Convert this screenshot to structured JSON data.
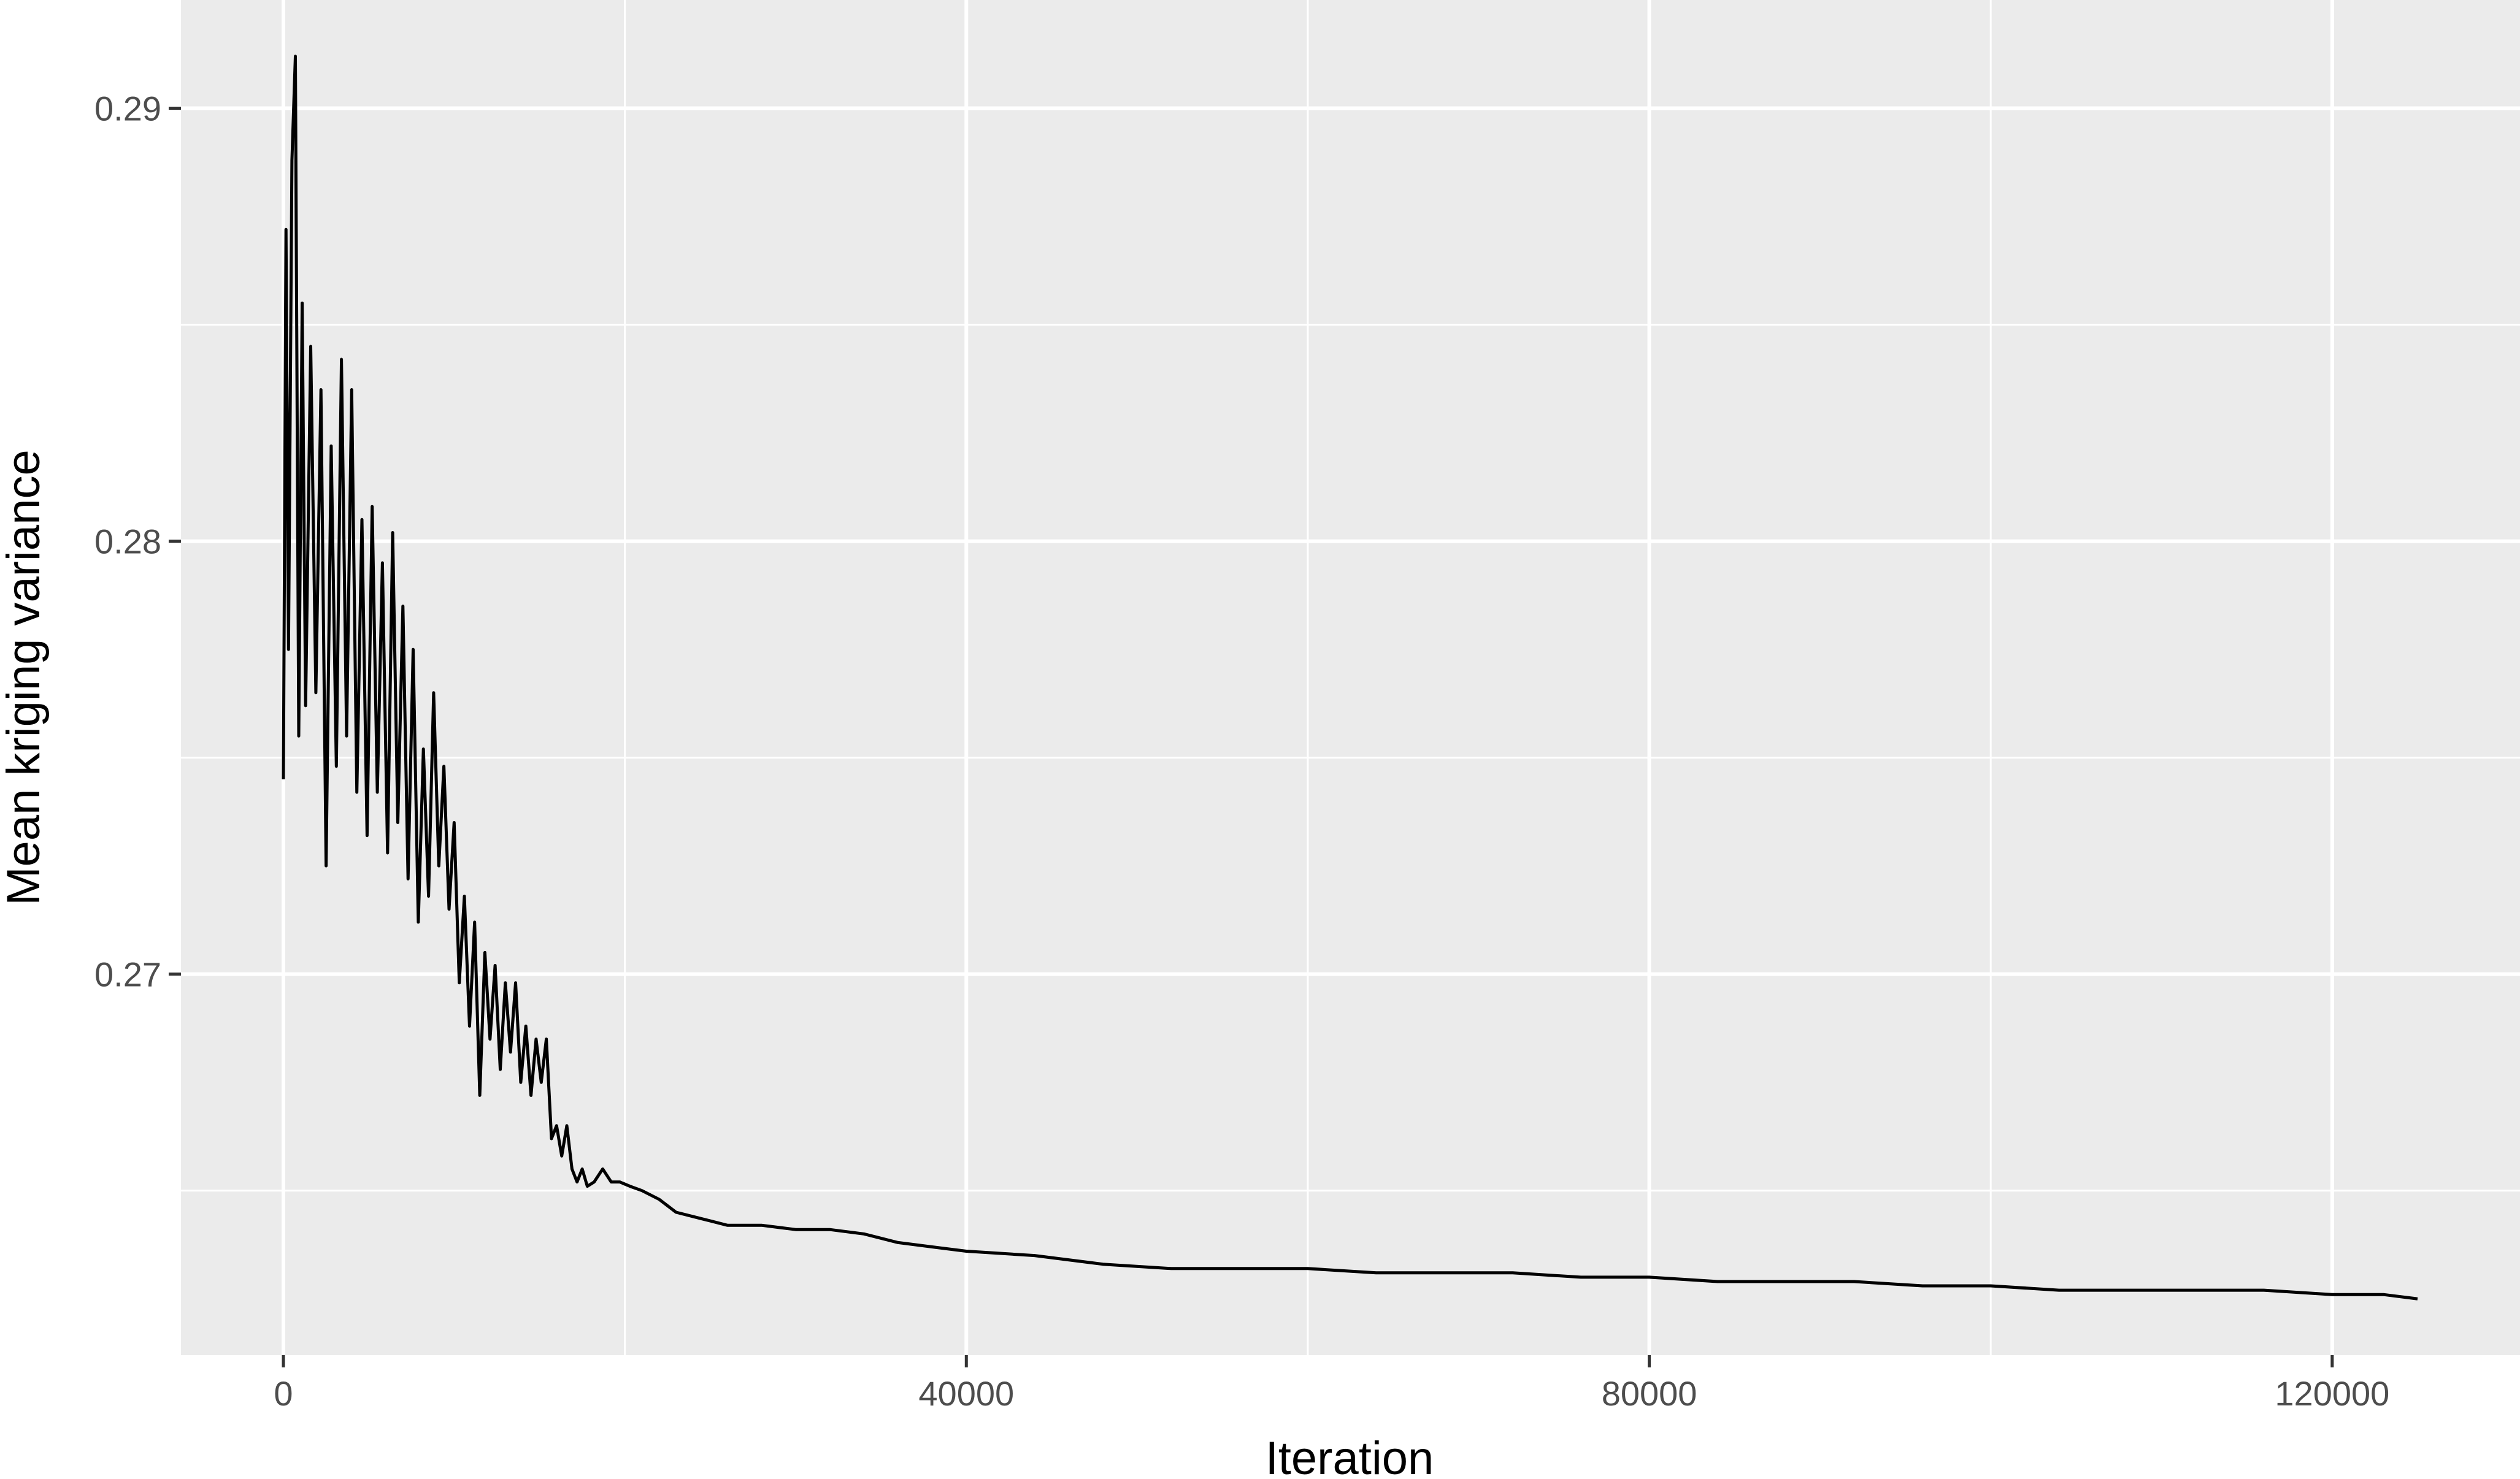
{
  "chart_data": {
    "type": "line",
    "title": "",
    "xlabel": "Iteration",
    "ylabel": "Mean kriging variance",
    "xlim": [
      -6000,
      131000
    ],
    "ylim": [
      0.2612,
      0.2925
    ],
    "x_ticks": [
      0,
      40000,
      80000,
      120000
    ],
    "x_tick_labels": [
      "0",
      "40000",
      "80000",
      "120000"
    ],
    "x_minor_breaks": [
      20000,
      60000,
      100000
    ],
    "y_ticks": [
      0.27,
      0.28,
      0.29
    ],
    "y_tick_labels": [
      "0.27",
      "0.28",
      "0.29"
    ],
    "y_minor_breaks": [
      0.265,
      0.275,
      0.285
    ],
    "grid": true,
    "colors": {
      "panel": "#ebebeb",
      "grid": "#ffffff",
      "line": "#000000"
    },
    "series": [
      {
        "x": [
          0,
          150,
          300,
          500,
          700,
          900,
          1100,
          1300,
          1600,
          1900,
          2200,
          2500,
          2800,
          3100,
          3400,
          3700,
          4000,
          4300,
          4600,
          4900,
          5200,
          5500,
          5800,
          6100,
          6400,
          6700,
          7000,
          7300,
          7600,
          7900,
          8200,
          8500,
          8800,
          9100,
          9400,
          9700,
          10000,
          10300,
          10600,
          10900,
          11200,
          11500,
          11800,
          12100,
          12400,
          12700,
          13000,
          13300,
          13600,
          13900,
          14200,
          14500,
          14800,
          15100,
          15400,
          15700,
          16000,
          16300,
          16600,
          16900,
          17200,
          17500,
          17800,
          18200,
          18700,
          19200,
          19700,
          20300,
          21000,
          22000,
          23000,
          24000,
          25000,
          26000,
          28000,
          30000,
          32000,
          34000,
          36000,
          38000,
          40000,
          44000,
          48000,
          52000,
          56000,
          60000,
          64000,
          68000,
          72000,
          76000,
          80000,
          84000,
          88000,
          92000,
          96000,
          100000,
          104000,
          108000,
          112000,
          116000,
          120000,
          123000,
          125000
        ],
        "values": [
          0.2745,
          0.2872,
          0.2775,
          0.2888,
          0.2912,
          0.2755,
          0.2855,
          0.2762,
          0.2845,
          0.2765,
          0.2835,
          0.2725,
          0.2822,
          0.2748,
          0.2842,
          0.2755,
          0.2835,
          0.2742,
          0.2805,
          0.2732,
          0.2808,
          0.2742,
          0.2795,
          0.2728,
          0.2802,
          0.2735,
          0.2785,
          0.2722,
          0.2775,
          0.2712,
          0.2752,
          0.2718,
          0.2765,
          0.2725,
          0.2748,
          0.2715,
          0.2735,
          0.2698,
          0.2718,
          0.2688,
          0.2712,
          0.2672,
          0.2705,
          0.2685,
          0.2702,
          0.2678,
          0.2698,
          0.2682,
          0.2698,
          0.2675,
          0.2688,
          0.2672,
          0.2685,
          0.2675,
          0.2685,
          0.2662,
          0.2665,
          0.2658,
          0.2665,
          0.2655,
          0.2652,
          0.2655,
          0.2651,
          0.2652,
          0.2655,
          0.2652,
          0.2652,
          0.2651,
          0.265,
          0.2648,
          0.2645,
          0.2644,
          0.2643,
          0.2642,
          0.2642,
          0.2641,
          0.2641,
          0.264,
          0.2638,
          0.2637,
          0.2636,
          0.2635,
          0.2633,
          0.2632,
          0.2632,
          0.2632,
          0.2631,
          0.2631,
          0.2631,
          0.263,
          0.263,
          0.2629,
          0.2629,
          0.2629,
          0.2628,
          0.2628,
          0.2627,
          0.2627,
          0.2627,
          0.2627,
          0.2626,
          0.2626,
          0.2625
        ]
      }
    ]
  }
}
